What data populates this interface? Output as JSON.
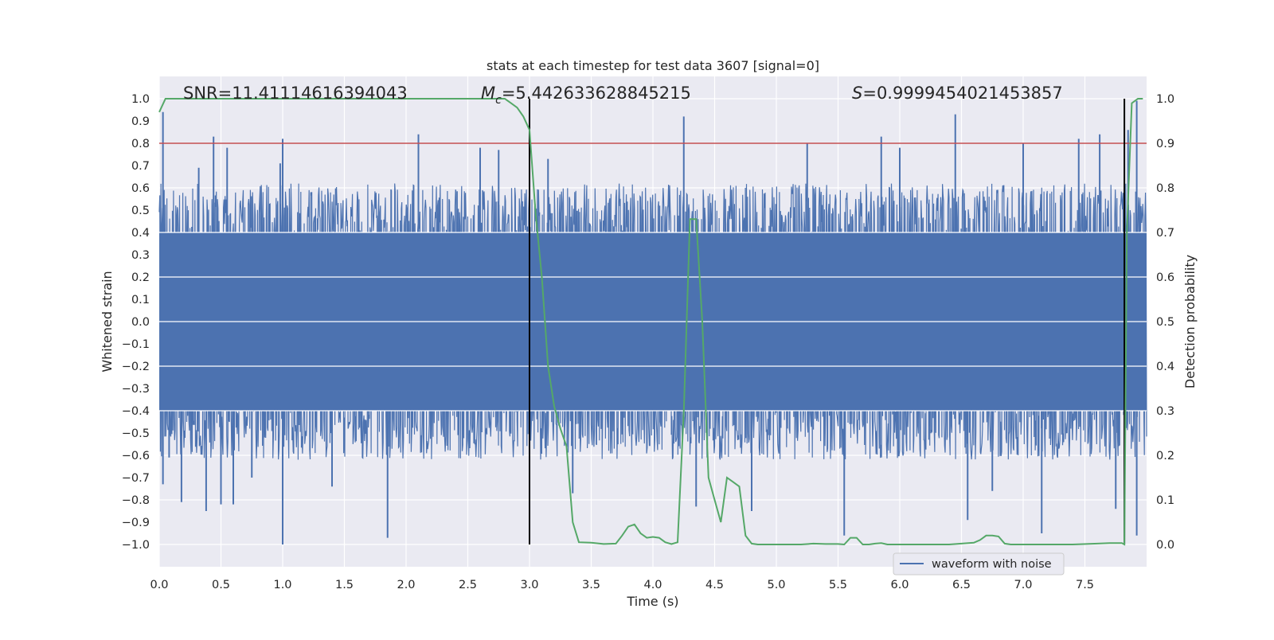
{
  "chart_data": {
    "type": "line",
    "title": "stats at each timestep for test data 3607 [signal=0]",
    "xlabel": "Time (s)",
    "ylabel": "Whitened strain",
    "ylabel_right": "Detection probability",
    "xlim": [
      0.0,
      8.0
    ],
    "ylim": [
      -1.1,
      1.1
    ],
    "ylim_right": [
      -0.05,
      1.05
    ],
    "xticks": [
      "0.0",
      "0.5",
      "1.0",
      "1.5",
      "2.0",
      "2.5",
      "3.0",
      "3.5",
      "4.0",
      "4.5",
      "5.0",
      "5.5",
      "6.0",
      "6.5",
      "7.0",
      "7.5"
    ],
    "yticks": [
      "1.0",
      "0.9",
      "0.8",
      "0.7",
      "0.6",
      "0.5",
      "0.4",
      "0.3",
      "0.2",
      "0.1",
      "0.0",
      "−0.1",
      "−0.2",
      "−0.3",
      "−0.4",
      "−0.5",
      "−0.6",
      "−0.7",
      "−0.8",
      "−0.9",
      "−1.0"
    ],
    "yticks_right": [
      "1.0",
      "0.9",
      "0.8",
      "0.7",
      "0.6",
      "0.5",
      "0.4",
      "0.3",
      "0.2",
      "0.1",
      "0.0"
    ],
    "grid": true,
    "legend_location": "lower-right",
    "annotations": {
      "snr": "SNR=11.41114616394043",
      "mc_symbol": "M",
      "mc_subscript": "c",
      "mc_value": "=5.442633628845215",
      "s_symbol": "S",
      "s_value": "=0.9999454021453857"
    },
    "vlines_x": [
      3.0,
      7.82
    ],
    "hline_right_y": 0.9,
    "series": [
      {
        "name": "waveform with noise",
        "color": "#4c72b0",
        "axis": "left",
        "kind": "noise_waveform",
        "core_envelope": [
          -0.4,
          0.4
        ],
        "spikes": [
          {
            "x": 0.03,
            "y": 0.94
          },
          {
            "x": 0.03,
            "y": -0.73
          },
          {
            "x": 0.08,
            "y": -0.61
          },
          {
            "x": 0.18,
            "y": -0.81
          },
          {
            "x": 0.32,
            "y": 0.69
          },
          {
            "x": 0.38,
            "y": -0.85
          },
          {
            "x": 0.44,
            "y": 0.83
          },
          {
            "x": 0.5,
            "y": -0.82
          },
          {
            "x": 0.55,
            "y": 0.78
          },
          {
            "x": 0.6,
            "y": -0.82
          },
          {
            "x": 0.75,
            "y": -0.7
          },
          {
            "x": 0.98,
            "y": 0.71
          },
          {
            "x": 1.0,
            "y": 0.82
          },
          {
            "x": 1.0,
            "y": -1.0
          },
          {
            "x": 1.4,
            "y": -0.74
          },
          {
            "x": 1.85,
            "y": -0.97
          },
          {
            "x": 2.1,
            "y": 0.84
          },
          {
            "x": 2.6,
            "y": 0.78
          },
          {
            "x": 2.75,
            "y": 0.77
          },
          {
            "x": 3.15,
            "y": 0.73
          },
          {
            "x": 3.35,
            "y": -0.77
          },
          {
            "x": 4.25,
            "y": 0.92
          },
          {
            "x": 4.35,
            "y": -0.83
          },
          {
            "x": 4.8,
            "y": -0.85
          },
          {
            "x": 5.25,
            "y": 0.8
          },
          {
            "x": 5.55,
            "y": -0.96
          },
          {
            "x": 5.85,
            "y": 0.83
          },
          {
            "x": 6.0,
            "y": 0.78
          },
          {
            "x": 6.45,
            "y": 0.93
          },
          {
            "x": 6.55,
            "y": -0.89
          },
          {
            "x": 6.75,
            "y": -0.76
          },
          {
            "x": 7.0,
            "y": 0.8
          },
          {
            "x": 7.15,
            "y": -0.95
          },
          {
            "x": 7.45,
            "y": 0.82
          },
          {
            "x": 7.62,
            "y": 0.84
          },
          {
            "x": 7.75,
            "y": -0.84
          },
          {
            "x": 7.85,
            "y": 0.86
          },
          {
            "x": 7.92,
            "y": 0.99
          },
          {
            "x": 7.92,
            "y": -0.96
          }
        ]
      },
      {
        "name": "",
        "color": "#55a868",
        "axis": "right",
        "x": [
          0.0,
          0.05,
          0.1,
          2.75,
          2.8,
          2.85,
          2.9,
          2.95,
          3.0,
          3.05,
          3.1,
          3.15,
          3.2,
          3.25,
          3.3,
          3.35,
          3.4,
          3.5,
          3.6,
          3.7,
          3.75,
          3.8,
          3.85,
          3.9,
          3.95,
          4.0,
          4.05,
          4.1,
          4.15,
          4.2,
          4.25,
          4.3,
          4.35,
          4.4,
          4.45,
          4.5,
          4.55,
          4.6,
          4.65,
          4.7,
          4.75,
          4.8,
          4.85,
          4.9,
          5.0,
          5.2,
          5.3,
          5.4,
          5.5,
          5.55,
          5.6,
          5.65,
          5.7,
          5.75,
          5.8,
          5.85,
          5.9,
          5.95,
          6.0,
          6.1,
          6.2,
          6.4,
          6.5,
          6.6,
          6.65,
          6.7,
          6.75,
          6.8,
          6.85,
          6.9,
          6.95,
          7.0,
          7.2,
          7.4,
          7.6,
          7.7,
          7.8,
          7.82,
          7.84,
          7.88,
          7.93,
          7.97
        ],
        "y": [
          0.97,
          1.0,
          1.0,
          1.0,
          1.0,
          0.99,
          0.98,
          0.96,
          0.93,
          0.74,
          0.6,
          0.4,
          0.31,
          0.26,
          0.22,
          0.05,
          0.005,
          0.004,
          0.001,
          0.002,
          0.02,
          0.04,
          0.045,
          0.025,
          0.015,
          0.017,
          0.015,
          0.005,
          0.001,
          0.005,
          0.3,
          0.73,
          0.73,
          0.5,
          0.15,
          0.1,
          0.05,
          0.15,
          0.14,
          0.13,
          0.02,
          0.002,
          0.0,
          0.0,
          0.0,
          0.0,
          0.002,
          0.001,
          0.001,
          0.0,
          0.015,
          0.015,
          0.0,
          0.0,
          0.002,
          0.003,
          0.0,
          0.0,
          0.0,
          0.0,
          0.0,
          0.0,
          0.002,
          0.004,
          0.01,
          0.02,
          0.02,
          0.018,
          0.002,
          0.0,
          0.0,
          0.0,
          0.0,
          0.0,
          0.002,
          0.003,
          0.003,
          0.0,
          0.7,
          0.99,
          1.0,
          1.0
        ]
      }
    ]
  }
}
